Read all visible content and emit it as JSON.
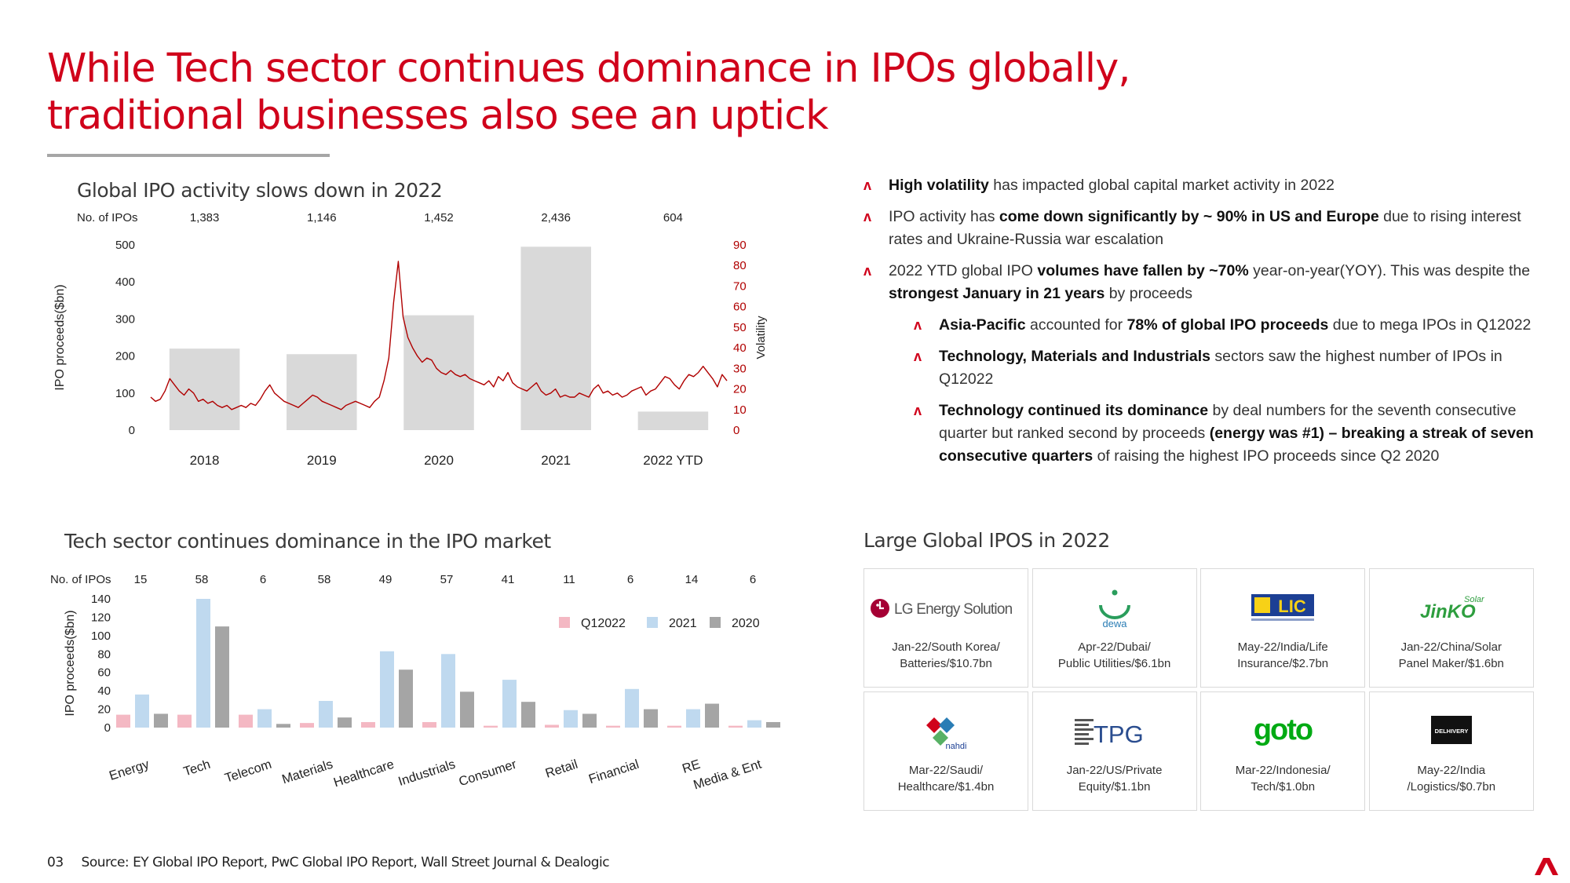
{
  "page": {
    "title_line1": "While Tech sector continues dominance in IPOs globally,",
    "title_line2": "traditional businesses also see an uptick",
    "page_number": "03",
    "source": "Source: EY Global IPO Report, PwC Global IPO Report, Wall Street Journal & Dealogic",
    "accent_color": "#d0021b"
  },
  "bullets": [
    {
      "level": 1,
      "parts": [
        {
          "b": "High volatility"
        },
        {
          "t": " has impacted global capital market activity in 2022"
        }
      ]
    },
    {
      "level": 1,
      "parts": [
        {
          "t": "IPO activity has "
        },
        {
          "b": "come down significantly by ~ 90% in US and Europe"
        },
        {
          "t": " due to rising interest rates and Ukraine-Russia war escalation"
        }
      ]
    },
    {
      "level": 1,
      "parts": [
        {
          "t": "2022 YTD global IPO "
        },
        {
          "b": "volumes have fallen by ~70%"
        },
        {
          "t": " year-on-year(YOY). This was despite the "
        },
        {
          "b": "strongest January in 21 years"
        },
        {
          "t": " by proceeds"
        }
      ]
    },
    {
      "level": 2,
      "parts": [
        {
          "b": "Asia-Pacific"
        },
        {
          "t": " accounted for "
        },
        {
          "b": "78% of global IPO proceeds"
        },
        {
          "t": " due to mega IPOs in Q12022"
        }
      ]
    },
    {
      "level": 2,
      "parts": [
        {
          "b": "Technology, Materials and Industrials"
        },
        {
          "t": " sectors saw the highest number of IPOs in Q12022"
        }
      ]
    },
    {
      "level": 2,
      "parts": [
        {
          "b": "Technology continued its dominance"
        },
        {
          "t": " by deal numbers for the seventh consecutive quarter but ranked second by  proceeds "
        },
        {
          "b": "(energy was #1) – breaking a streak of seven consecutive quarters"
        },
        {
          "t": " of raising the highest IPO proceeds since Q2 2020"
        }
      ]
    }
  ],
  "large_ipos": {
    "title": "Large Global IPOS in 2022",
    "items": [
      {
        "logo": "lg-energy-solution-logo",
        "logo_text": "LG Energy Solution",
        "line1": "Jan-22/South Korea/",
        "line2": "Batteries/$10.7bn"
      },
      {
        "logo": "dewa-logo",
        "logo_text": "dewa",
        "line1": "Apr-22/Dubai/",
        "line2": "Public Utilities/$6.1bn"
      },
      {
        "logo": "lic-logo",
        "logo_text": "LIC",
        "line1": "May-22/India/Life",
        "line2": "Insurance/$2.7bn"
      },
      {
        "logo": "jinko-solar-logo",
        "logo_text": "JinKO",
        "logo_sub": "Solar",
        "line1": "Jan-22/China/Solar",
        "line2": "Panel Maker/$1.6bn"
      },
      {
        "logo": "nahdi-logo",
        "logo_text": "nahdi",
        "line1": "Mar-22/Saudi/",
        "line2": "Healthcare/$1.4bn"
      },
      {
        "logo": "tpg-logo",
        "logo_text": "TPG",
        "line1": "Jan-22/US/Private",
        "line2": "Equity/$1.1bn"
      },
      {
        "logo": "goto-logo",
        "logo_text": "goto",
        "line1": "Mar-22/Indonesia/",
        "line2": "Tech/$1.0bn"
      },
      {
        "logo": "delhivery-logo",
        "logo_text": "DELHIVERY",
        "line1": "May-22/India",
        "line2": "/Logistics/$0.7bn"
      }
    ]
  },
  "chart_data": [
    {
      "type": "bar",
      "title": "Global IPO activity slows down in 2022",
      "count_label": "No. of IPOs",
      "categories": [
        "2018",
        "2019",
        "2020",
        "2021",
        "2022 YTD"
      ],
      "ipo_counts": [
        "1,383",
        "1,146",
        "1,452",
        "2,436",
        "604"
      ],
      "series": [
        {
          "values": [
            220,
            205,
            310,
            495,
            50
          ],
          "color": "#d9d9d9"
        }
      ],
      "ylabel": "IPO proceeds($bn)",
      "ylim": [
        0,
        500
      ],
      "yticks": [
        0,
        100,
        200,
        300,
        400,
        500
      ],
      "overlay": {
        "type": "line",
        "ylabel": "Volatility",
        "ylim": [
          0,
          90
        ],
        "yticks": [
          0,
          10,
          20,
          30,
          40,
          50,
          60,
          70,
          80,
          90
        ],
        "color": "#b00000",
        "x_start": 2018.0,
        "x_end": 2022.5,
        "values": [
          16,
          14,
          15,
          19,
          25,
          22,
          19,
          17,
          20,
          18,
          14,
          15,
          13,
          14,
          12,
          11,
          12,
          10,
          11,
          12,
          11,
          13,
          12,
          15,
          19,
          22,
          18,
          16,
          14,
          13,
          12,
          11,
          13,
          15,
          17,
          16,
          14,
          13,
          12,
          11,
          10,
          12,
          13,
          14,
          13,
          12,
          11,
          14,
          16,
          24,
          35,
          62,
          82,
          55,
          45,
          40,
          36,
          33,
          35,
          34,
          30,
          28,
          27,
          29,
          27,
          26,
          27,
          25,
          24,
          23,
          22,
          24,
          21,
          26,
          24,
          28,
          23,
          21,
          20,
          19,
          21,
          23,
          19,
          17,
          18,
          20,
          16,
          17,
          16,
          16,
          18,
          17,
          16,
          20,
          22,
          18,
          19,
          17,
          18,
          16,
          17,
          19,
          20,
          21,
          17,
          19,
          20,
          23,
          26,
          25,
          22,
          20,
          24,
          27,
          26,
          28,
          31,
          28,
          25,
          21,
          27,
          24
        ]
      },
      "grid": false,
      "legend": "none"
    },
    {
      "type": "bar",
      "title": "Tech sector continues dominance in the IPO market",
      "count_label": "No. of IPOs",
      "categories": [
        "Energy",
        "Tech",
        "Telecom",
        "Materials",
        "Healthcare",
        "Industrials",
        "Consumer",
        "Retail",
        "Financial",
        "RE",
        "Media & Ent"
      ],
      "ipo_counts": [
        "15",
        "58",
        "6",
        "58",
        "49",
        "57",
        "41",
        "11",
        "6",
        "14",
        "6"
      ],
      "series": [
        {
          "name": "Q12022",
          "color": "#f4b8c3",
          "values": [
            14,
            14,
            14,
            5,
            6,
            6,
            2,
            3,
            2,
            2,
            2
          ]
        },
        {
          "name": "2021",
          "color": "#bfd9ef",
          "values": [
            36,
            140,
            20,
            29,
            83,
            80,
            52,
            19,
            42,
            20,
            8
          ]
        },
        {
          "name": "2020",
          "color": "#a5a5a5",
          "values": [
            15,
            110,
            4,
            11,
            63,
            39,
            28,
            15,
            20,
            26,
            6
          ]
        }
      ],
      "ylabel": "IPO proceeds($bn)",
      "ylim": [
        0,
        140
      ],
      "yticks": [
        0,
        20,
        40,
        60,
        80,
        100,
        120,
        140
      ],
      "grid": false,
      "legend": "top-right"
    }
  ]
}
